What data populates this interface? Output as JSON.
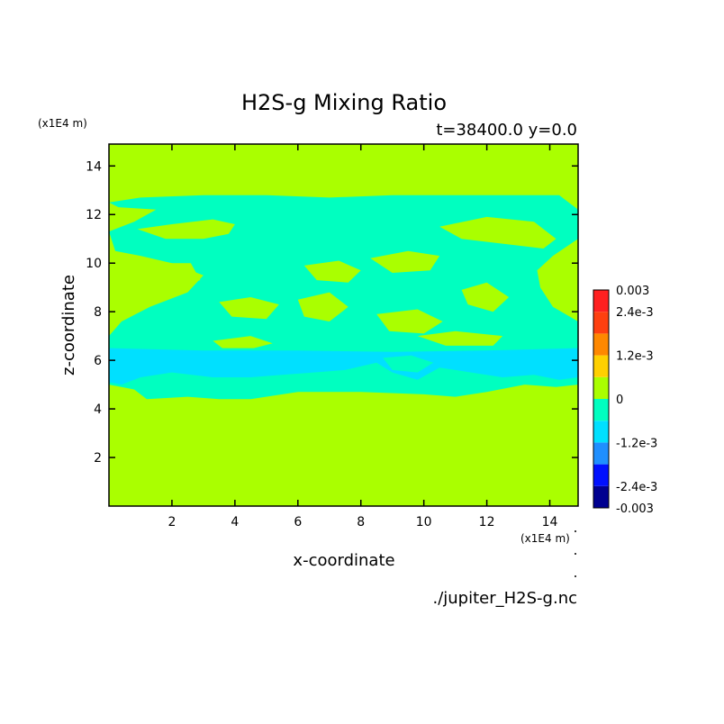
{
  "chart_data": {
    "type": "heatmap",
    "title": "H2S-g Mixing Ratio",
    "subtitle": "t=38400.0 y=0.0",
    "xlabel": "x-coordinate",
    "ylabel": "z-coordinate",
    "x_unit_label": "(x1E4 m)",
    "y_unit_label": "(x1E4 m)",
    "source_label": "./jupiter_H2S-g.nc",
    "xlim": [
      0,
      14.9
    ],
    "ylim": [
      0,
      14.9
    ],
    "x_ticks": [
      2,
      4,
      6,
      8,
      10,
      12,
      14
    ],
    "y_ticks": [
      2,
      4,
      6,
      8,
      10,
      12,
      14
    ],
    "x_tick_labels": [
      "2",
      "4",
      "6",
      "8",
      "10",
      "12",
      "14"
    ],
    "y_tick_labels": [
      "2",
      "4",
      "6",
      "8",
      "10",
      "12",
      "14"
    ],
    "background_level": 0,
    "colorbar": {
      "levels": [
        -0.003,
        -0.0024,
        -0.0018,
        -0.0012,
        -0.0006,
        0,
        0.0006,
        0.0012,
        0.0018,
        0.0024,
        0.003
      ],
      "colors": [
        "#000090",
        "#0010ff",
        "#1f8fff",
        "#00e0ff",
        "#00ffc0",
        "#aaff00",
        "#ffd000",
        "#ff8800",
        "#ff4010",
        "#ff2020"
      ],
      "tick_values": [
        0.003,
        0.0024,
        0.0012,
        0,
        -0.0012,
        -0.0024,
        -0.003
      ],
      "tick_labels": [
        "0.003",
        "2.4e-3",
        "1.2e-3",
        "0",
        "-1.2e-3",
        "-2.4e-3",
        "-0.003"
      ]
    },
    "regions": [
      {
        "name": "cyan-main-band",
        "level_index": 4,
        "polygon": [
          [
            0,
            12.5
          ],
          [
            1,
            12.7
          ],
          [
            3,
            12.8
          ],
          [
            5,
            12.8
          ],
          [
            7,
            12.7
          ],
          [
            9,
            12.8
          ],
          [
            11,
            12.8
          ],
          [
            13,
            12.8
          ],
          [
            14.3,
            12.8
          ],
          [
            14.9,
            12.2
          ],
          [
            14.9,
            11.0
          ],
          [
            14.1,
            10.3
          ],
          [
            13.6,
            9.7
          ],
          [
            13.7,
            9.0
          ],
          [
            14.1,
            8.2
          ],
          [
            14.9,
            7.6
          ],
          [
            14.9,
            5.0
          ],
          [
            14.2,
            4.9
          ],
          [
            13.2,
            5.0
          ],
          [
            12.0,
            4.7
          ],
          [
            11.0,
            4.5
          ],
          [
            10.0,
            4.6
          ],
          [
            8.0,
            4.7
          ],
          [
            6.0,
            4.7
          ],
          [
            4.5,
            4.4
          ],
          [
            3.5,
            4.4
          ],
          [
            2.5,
            4.5
          ],
          [
            1.2,
            4.4
          ],
          [
            0.8,
            4.8
          ],
          [
            0,
            5.0
          ],
          [
            0,
            7.0
          ],
          [
            0.4,
            7.6
          ],
          [
            1.3,
            8.2
          ],
          [
            2.5,
            8.8
          ],
          [
            3.0,
            9.5
          ],
          [
            2.0,
            10.0
          ],
          [
            1.0,
            10.3
          ],
          [
            0.2,
            10.5
          ],
          [
            0,
            11.3
          ],
          [
            0.8,
            11.7
          ],
          [
            1.5,
            12.2
          ],
          [
            0.3,
            12.3
          ]
        ]
      },
      {
        "name": "blue-layer",
        "level_index": 3,
        "polygon": [
          [
            0,
            6.5
          ],
          [
            3,
            6.4
          ],
          [
            6,
            6.4
          ],
          [
            9,
            6.35
          ],
          [
            12,
            6.4
          ],
          [
            14.9,
            6.5
          ],
          [
            14.9,
            5.3
          ],
          [
            14.3,
            5.2
          ],
          [
            13.5,
            5.4
          ],
          [
            12.5,
            5.3
          ],
          [
            11.5,
            5.5
          ],
          [
            10.5,
            5.7
          ],
          [
            9.8,
            5.2
          ],
          [
            9.0,
            5.5
          ],
          [
            8.5,
            5.9
          ],
          [
            7.5,
            5.6
          ],
          [
            6.5,
            5.5
          ],
          [
            5.5,
            5.4
          ],
          [
            4.5,
            5.3
          ],
          [
            3.3,
            5.3
          ],
          [
            2.0,
            5.5
          ],
          [
            1.0,
            5.3
          ],
          [
            0.4,
            5.0
          ],
          [
            0,
            5.1
          ]
        ]
      },
      {
        "name": "green-gap-upper-left",
        "level_index": 5,
        "polygon": [
          [
            0.9,
            11.4
          ],
          [
            2.0,
            11.6
          ],
          [
            3.3,
            11.8
          ],
          [
            4.0,
            11.6
          ],
          [
            3.8,
            11.2
          ],
          [
            3.0,
            11.0
          ],
          [
            1.8,
            11.0
          ]
        ]
      },
      {
        "name": "green-gap-upper-right",
        "level_index": 5,
        "polygon": [
          [
            10.5,
            11.5
          ],
          [
            12.0,
            11.9
          ],
          [
            13.5,
            11.7
          ],
          [
            14.2,
            11.0
          ],
          [
            13.8,
            10.6
          ],
          [
            12.5,
            10.8
          ],
          [
            11.2,
            11.0
          ]
        ]
      },
      {
        "name": "green-blob-center-1",
        "level_index": 5,
        "polygon": [
          [
            6.2,
            9.9
          ],
          [
            7.3,
            10.1
          ],
          [
            8.0,
            9.7
          ],
          [
            7.6,
            9.2
          ],
          [
            6.6,
            9.3
          ]
        ]
      },
      {
        "name": "green-blob-center-2",
        "level_index": 5,
        "polygon": [
          [
            8.3,
            10.2
          ],
          [
            9.5,
            10.5
          ],
          [
            10.5,
            10.3
          ],
          [
            10.2,
            9.7
          ],
          [
            9.0,
            9.6
          ]
        ]
      },
      {
        "name": "green-blob-left-mid",
        "level_index": 5,
        "polygon": [
          [
            1.2,
            10.0
          ],
          [
            2.6,
            10.0
          ],
          [
            2.9,
            9.3
          ],
          [
            2.0,
            9.0
          ],
          [
            1.1,
            9.4
          ]
        ]
      },
      {
        "name": "green-blob-mid-1",
        "level_index": 5,
        "polygon": [
          [
            3.5,
            8.4
          ],
          [
            4.5,
            8.6
          ],
          [
            5.4,
            8.3
          ],
          [
            5.0,
            7.7
          ],
          [
            3.9,
            7.8
          ]
        ]
      },
      {
        "name": "green-blob-mid-2",
        "level_index": 5,
        "polygon": [
          [
            6.0,
            8.5
          ],
          [
            7.0,
            8.8
          ],
          [
            7.6,
            8.2
          ],
          [
            7.0,
            7.6
          ],
          [
            6.2,
            7.8
          ]
        ]
      },
      {
        "name": "green-blob-mid-3",
        "level_index": 5,
        "polygon": [
          [
            8.5,
            7.9
          ],
          [
            9.8,
            8.1
          ],
          [
            10.6,
            7.6
          ],
          [
            10.0,
            7.1
          ],
          [
            8.9,
            7.2
          ]
        ]
      },
      {
        "name": "green-blob-right-mid",
        "level_index": 5,
        "polygon": [
          [
            11.2,
            8.9
          ],
          [
            12.0,
            9.2
          ],
          [
            12.7,
            8.6
          ],
          [
            12.2,
            8.0
          ],
          [
            11.4,
            8.3
          ]
        ]
      },
      {
        "name": "green-blob-low-left",
        "level_index": 5,
        "polygon": [
          [
            3.3,
            6.8
          ],
          [
            4.5,
            7.0
          ],
          [
            5.2,
            6.7
          ],
          [
            4.6,
            6.5
          ],
          [
            3.6,
            6.5
          ]
        ]
      },
      {
        "name": "green-blob-low-right",
        "level_index": 5,
        "polygon": [
          [
            9.8,
            7.0
          ],
          [
            11.0,
            7.2
          ],
          [
            12.5,
            7.0
          ],
          [
            12.2,
            6.6
          ],
          [
            10.7,
            6.6
          ]
        ]
      },
      {
        "name": "cyan-pocket-in-blue",
        "level_index": 4,
        "polygon": [
          [
            8.7,
            6.1
          ],
          [
            9.6,
            6.2
          ],
          [
            10.3,
            5.9
          ],
          [
            9.8,
            5.5
          ],
          [
            9.0,
            5.6
          ]
        ]
      }
    ]
  }
}
